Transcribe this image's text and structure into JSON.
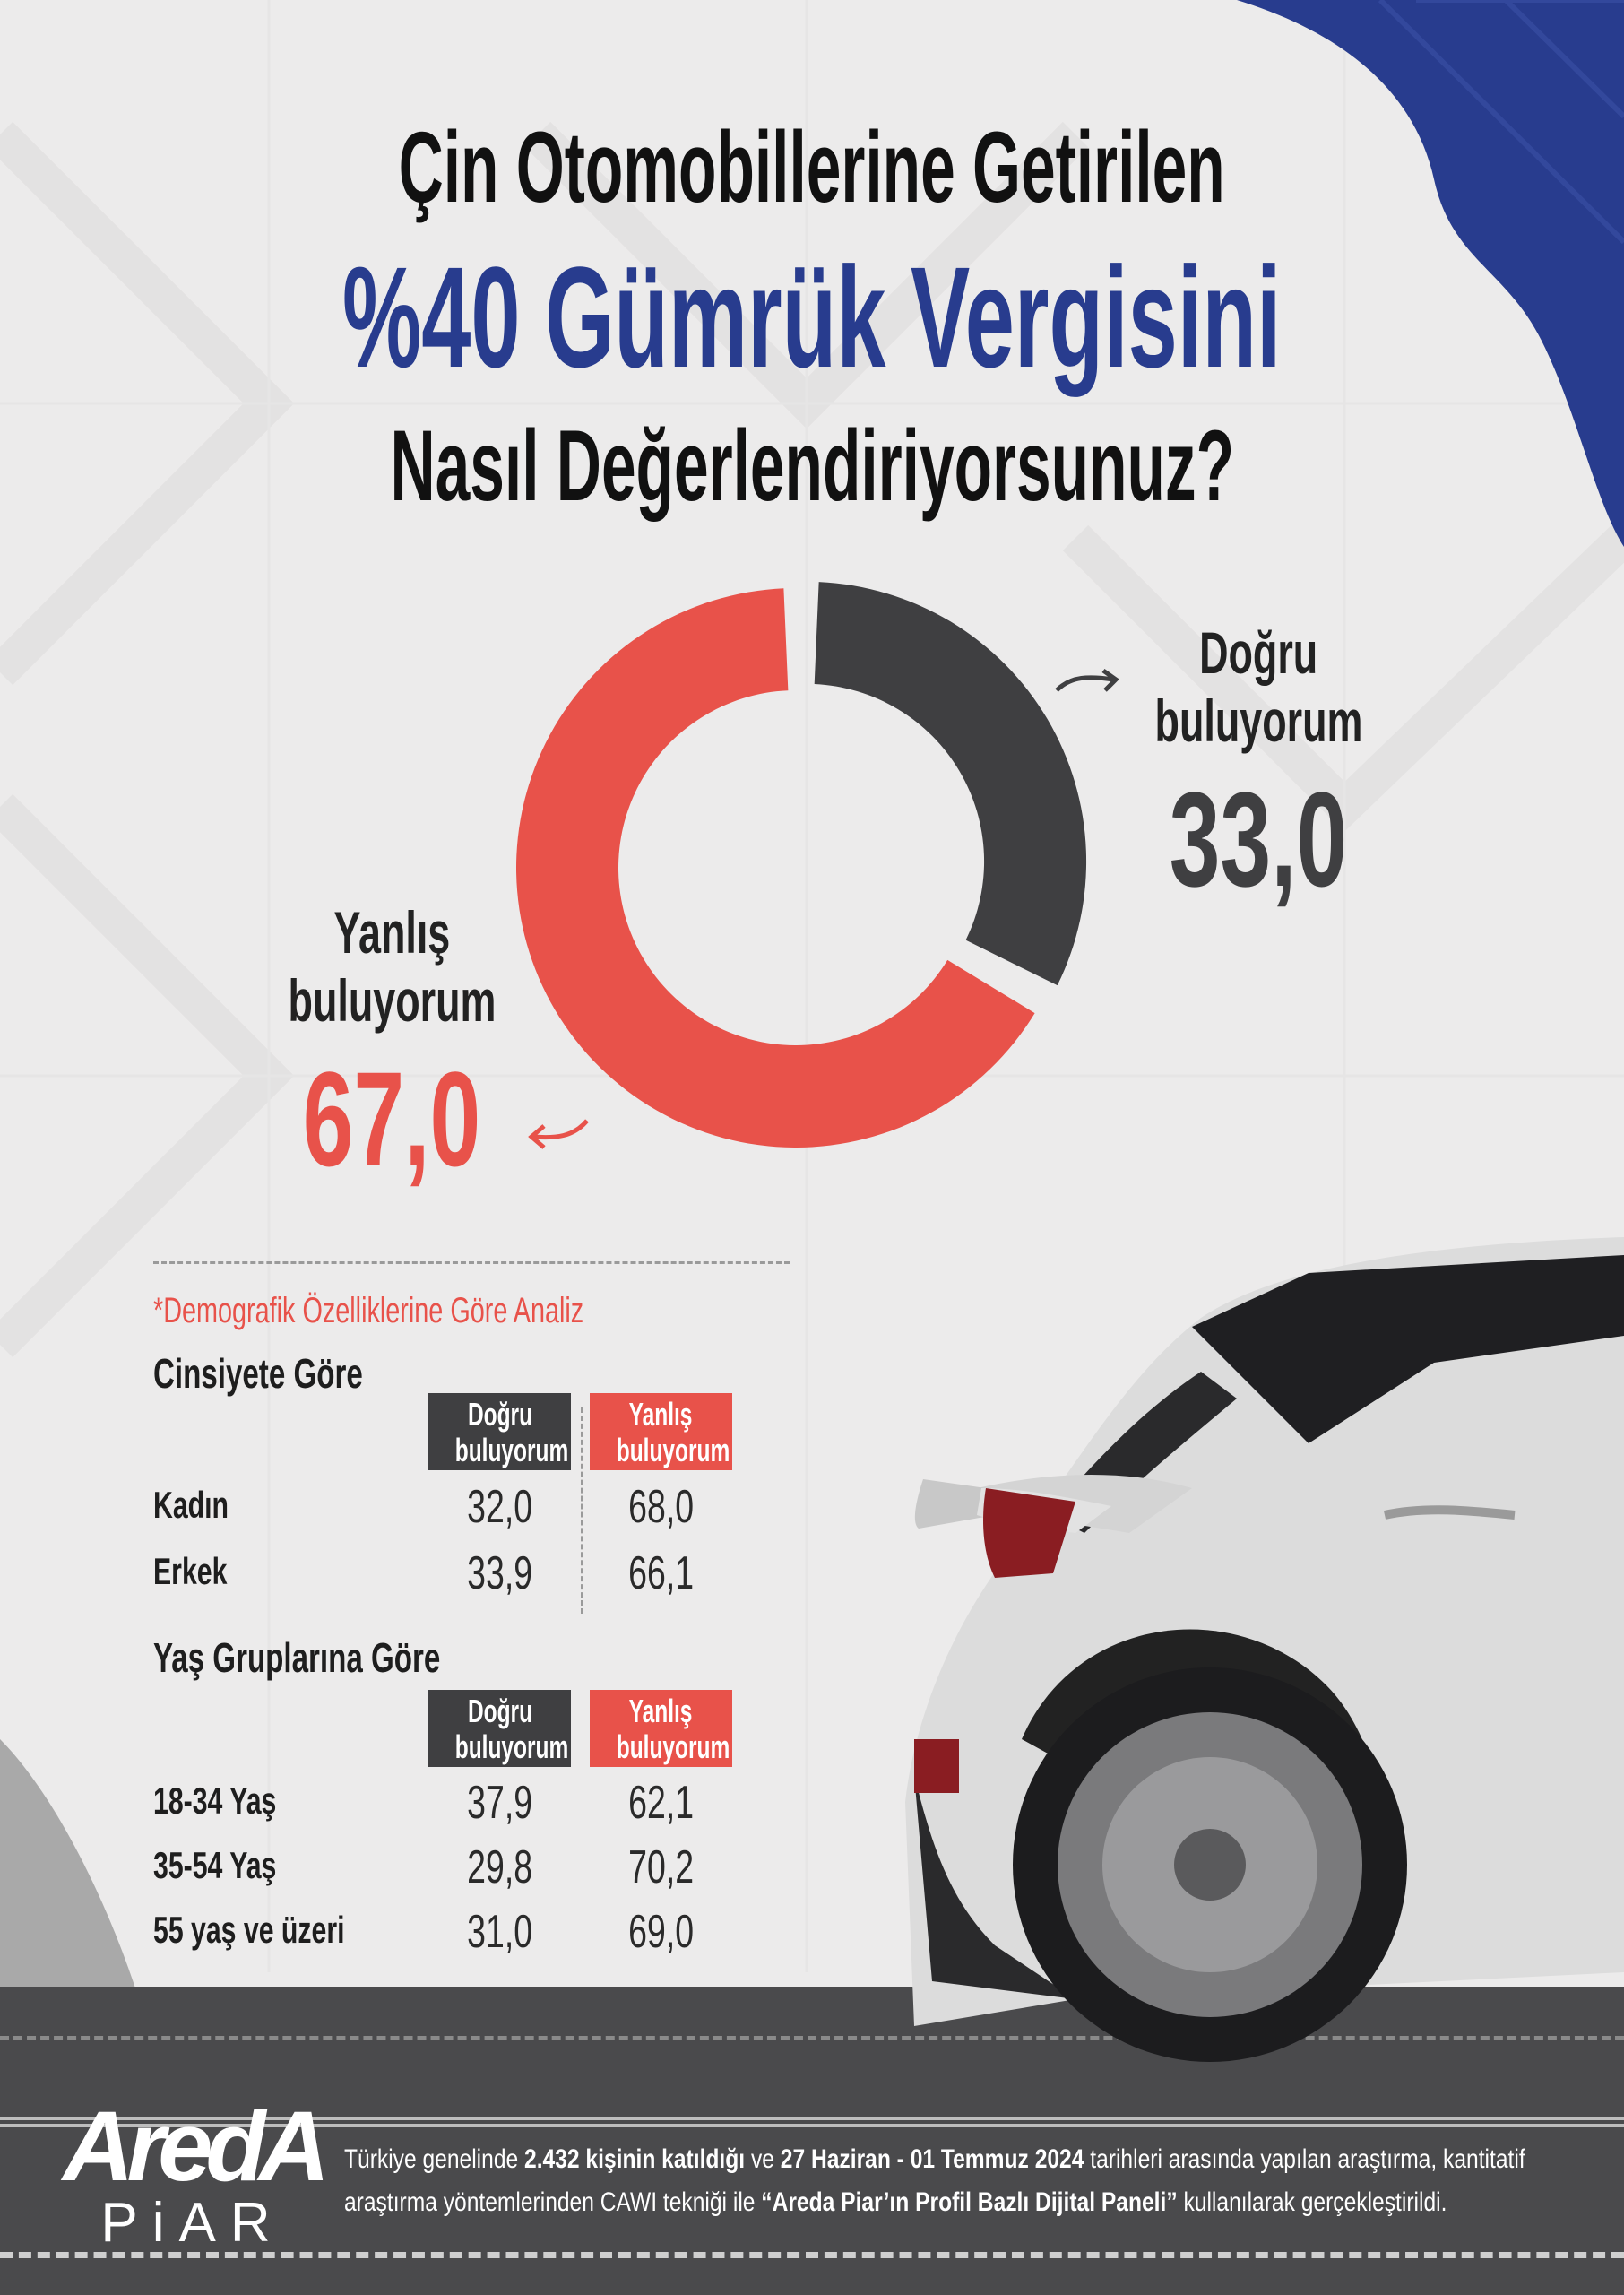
{
  "colors": {
    "accent_blue": "#283c8e",
    "yes": "#3f3f41",
    "no": "#e8524a",
    "road": "#4a4a4c"
  },
  "title": {
    "line1": "Çin Otomobillerine Getirilen",
    "line2": "%40 Gümrük Vergisini",
    "line3": "Nasıl Değerlendiriyorsunuz?"
  },
  "chart_data": {
    "type": "pie",
    "donut": true,
    "title": "Çin Otomobillerine Getirilen %40 Gümrük Vergisini Nasıl Değerlendiriyorsunuz?",
    "slices": [
      {
        "name": "Doğru buluyorum",
        "name_l1": "Doğru",
        "name_l2": "buluyorum",
        "value": 33.0,
        "label": "33,0",
        "color": "#3f3f41"
      },
      {
        "name": "Yanlış buluyorum",
        "name_l1": "Yanlış",
        "name_l2": "buluyorum",
        "value": 67.0,
        "label": "67,0",
        "color": "#e8524a"
      }
    ]
  },
  "demographics": {
    "note": "*Demografik Özelliklerine Göre Analiz",
    "headers": {
      "yes_l1": "Doğru",
      "yes_l2": "buluyorum",
      "no_l1": "Yanlış",
      "no_l2": "buluyorum"
    },
    "gender": {
      "title": "Cinsiyete Göre",
      "rows": [
        {
          "label": "Kadın",
          "yes": "32,0",
          "no": "68,0"
        },
        {
          "label": "Erkek",
          "yes": "33,9",
          "no": "66,1"
        }
      ]
    },
    "age": {
      "title": "Yaş Gruplarına Göre",
      "rows": [
        {
          "label": "18-34 Yaş",
          "yes": "37,9",
          "no": "62,1"
        },
        {
          "label": "35-54 Yaş",
          "yes": "29,8",
          "no": "70,2"
        },
        {
          "label": "55 yaş ve üzeri",
          "yes": "31,0",
          "no": "69,0"
        }
      ]
    }
  },
  "footer": {
    "logo_top": "AredA",
    "logo_bottom": "PiAR",
    "l1_a": "Türkiye genelinde ",
    "l1_b": "2.432 kişinin katıldığı",
    "l1_c": " ve ",
    "l1_d": "27 Haziran - 01 Temmuz 2024",
    "l1_e": " tarihleri arasında yapılan araştırma, kantitatif",
    "l2_a": "araştırma yöntemlerinden CAWI tekniği ile ",
    "l2_b": "“Areda Piar’ın Profil Bazlı Dijital Paneli”",
    "l2_c": " kullanılarak gerçekleştirildi."
  }
}
